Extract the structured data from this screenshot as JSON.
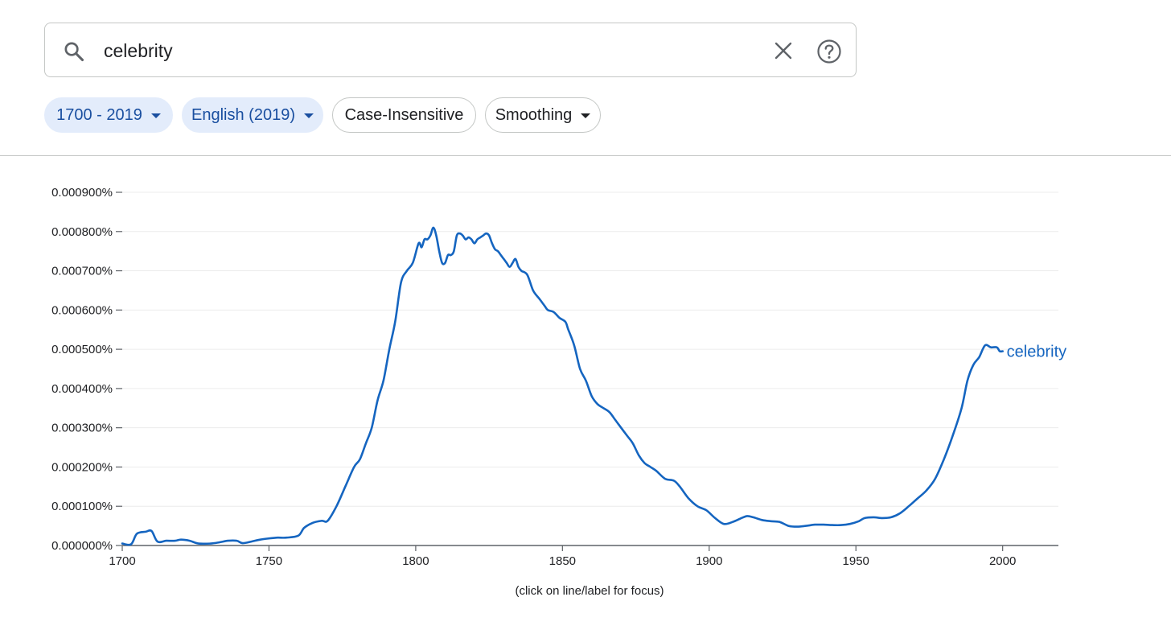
{
  "search": {
    "query": "celebrity"
  },
  "filters": {
    "year_range": "1700 - 2019",
    "corpus": "English (2019)",
    "case": "Case-Insensitive",
    "smoothing": "Smoothing"
  },
  "note": "(click on line/label for focus)",
  "colors": {
    "line": "#1565c0",
    "chip_bg": "#e3ecfb",
    "chip_text": "#1a4fa0"
  },
  "chart_data": {
    "type": "line",
    "title": "",
    "xlabel": "",
    "ylabel": "",
    "xlim": [
      1700,
      2019
    ],
    "ylim": [
      0,
      0.0009
    ],
    "x_ticks": [
      1700,
      1750,
      1800,
      1850,
      1900,
      1950,
      2000
    ],
    "y_ticks": [
      "0.000000%",
      "0.000100%",
      "0.000200%",
      "0.000300%",
      "0.000400%",
      "0.000500%",
      "0.000600%",
      "0.000700%",
      "0.000800%",
      "0.000900%"
    ],
    "grid": true,
    "legend": "inline-right",
    "series": [
      {
        "name": "celebrity",
        "unit": "percent",
        "points": [
          [
            1700,
            5e-06
          ],
          [
            1703,
            3e-06
          ],
          [
            1705,
            3e-05
          ],
          [
            1708,
            3.5e-05
          ],
          [
            1710,
            3.7e-05
          ],
          [
            1712,
            1e-05
          ],
          [
            1715,
            1.2e-05
          ],
          [
            1718,
            1.2e-05
          ],
          [
            1720,
            1.5e-05
          ],
          [
            1723,
            1.2e-05
          ],
          [
            1726,
            5e-06
          ],
          [
            1730,
            5e-06
          ],
          [
            1733,
            8e-06
          ],
          [
            1736,
            1.2e-05
          ],
          [
            1739,
            1.2e-05
          ],
          [
            1741,
            6e-06
          ],
          [
            1744,
            1e-05
          ],
          [
            1747,
            1.5e-05
          ],
          [
            1750,
            1.8e-05
          ],
          [
            1753,
            2e-05
          ],
          [
            1756,
            2e-05
          ],
          [
            1760,
            2.5e-05
          ],
          [
            1762,
            4.5e-05
          ],
          [
            1765,
            5.8e-05
          ],
          [
            1768,
            6.3e-05
          ],
          [
            1770,
            6.3e-05
          ],
          [
            1773,
            0.0001
          ],
          [
            1776,
            0.00015
          ],
          [
            1779,
            0.0002
          ],
          [
            1781,
            0.00022
          ],
          [
            1783,
            0.00026
          ],
          [
            1785,
            0.0003
          ],
          [
            1787,
            0.00037
          ],
          [
            1789,
            0.00042
          ],
          [
            1791,
            0.0005
          ],
          [
            1793,
            0.00057
          ],
          [
            1795,
            0.00067
          ],
          [
            1797,
            0.0007
          ],
          [
            1799,
            0.00072
          ],
          [
            1801,
            0.00077
          ],
          [
            1802,
            0.00076
          ],
          [
            1803,
            0.00078
          ],
          [
            1804,
            0.00078
          ],
          [
            1805,
            0.00079
          ],
          [
            1806,
            0.00081
          ],
          [
            1807,
            0.00079
          ],
          [
            1808,
            0.00075
          ],
          [
            1809,
            0.00072
          ],
          [
            1810,
            0.00072
          ],
          [
            1811,
            0.00074
          ],
          [
            1812,
            0.00074
          ],
          [
            1813,
            0.00075
          ],
          [
            1814,
            0.00079
          ],
          [
            1815,
            0.000795
          ],
          [
            1816,
            0.00079
          ],
          [
            1817,
            0.00078
          ],
          [
            1818,
            0.000785
          ],
          [
            1819,
            0.00078
          ],
          [
            1820,
            0.00077
          ],
          [
            1821,
            0.00078
          ],
          [
            1822,
            0.000785
          ],
          [
            1823,
            0.00079
          ],
          [
            1824,
            0.000795
          ],
          [
            1825,
            0.00079
          ],
          [
            1826,
            0.00077
          ],
          [
            1827,
            0.000755
          ],
          [
            1828,
            0.00075
          ],
          [
            1829,
            0.00074
          ],
          [
            1830,
            0.00073
          ],
          [
            1831,
            0.00072
          ],
          [
            1832,
            0.00071
          ],
          [
            1833,
            0.00072
          ],
          [
            1834,
            0.00073
          ],
          [
            1835,
            0.00071
          ],
          [
            1836,
            0.0007
          ],
          [
            1838,
            0.00069
          ],
          [
            1840,
            0.00065
          ],
          [
            1842,
            0.00063
          ],
          [
            1843,
            0.00062
          ],
          [
            1844,
            0.00061
          ],
          [
            1845,
            0.0006
          ],
          [
            1847,
            0.000595
          ],
          [
            1849,
            0.00058
          ],
          [
            1851,
            0.00057
          ],
          [
            1852,
            0.00055
          ],
          [
            1854,
            0.00051
          ],
          [
            1856,
            0.00045
          ],
          [
            1858,
            0.00042
          ],
          [
            1860,
            0.00038
          ],
          [
            1862,
            0.00036
          ],
          [
            1864,
            0.00035
          ],
          [
            1866,
            0.00034
          ],
          [
            1868,
            0.00032
          ],
          [
            1870,
            0.0003
          ],
          [
            1872,
            0.00028
          ],
          [
            1874,
            0.00026
          ],
          [
            1876,
            0.00023
          ],
          [
            1878,
            0.00021
          ],
          [
            1880,
            0.0002
          ],
          [
            1882,
            0.00019
          ],
          [
            1885,
            0.00017
          ],
          [
            1888,
            0.000165
          ],
          [
            1890,
            0.00015
          ],
          [
            1893,
            0.00012
          ],
          [
            1896,
            0.0001
          ],
          [
            1899,
            9e-05
          ],
          [
            1902,
            7e-05
          ],
          [
            1905,
            5.5e-05
          ],
          [
            1908,
            6e-05
          ],
          [
            1911,
            7e-05
          ],
          [
            1913,
            7.5e-05
          ],
          [
            1915,
            7.2e-05
          ],
          [
            1918,
            6.5e-05
          ],
          [
            1921,
            6.2e-05
          ],
          [
            1924,
            6e-05
          ],
          [
            1927,
            5e-05
          ],
          [
            1930,
            4.8e-05
          ],
          [
            1933,
            5e-05
          ],
          [
            1936,
            5.3e-05
          ],
          [
            1939,
            5.3e-05
          ],
          [
            1942,
            5.2e-05
          ],
          [
            1945,
            5.2e-05
          ],
          [
            1948,
            5.5e-05
          ],
          [
            1951,
            6.2e-05
          ],
          [
            1953,
            7e-05
          ],
          [
            1956,
            7.2e-05
          ],
          [
            1959,
            7e-05
          ],
          [
            1962,
            7.2e-05
          ],
          [
            1965,
            8.2e-05
          ],
          [
            1968,
            0.0001
          ],
          [
            1971,
            0.00012
          ],
          [
            1974,
            0.00014
          ],
          [
            1977,
            0.00017
          ],
          [
            1980,
            0.00022
          ],
          [
            1983,
            0.00028
          ],
          [
            1986,
            0.00035
          ],
          [
            1988,
            0.00042
          ],
          [
            1990,
            0.00046
          ],
          [
            1992,
            0.00048
          ],
          [
            1994,
            0.00051
          ],
          [
            1996,
            0.000505
          ],
          [
            1998,
            0.000505
          ],
          [
            1999,
            0.000495
          ],
          [
            2000,
            0.000495
          ]
        ]
      }
    ]
  }
}
